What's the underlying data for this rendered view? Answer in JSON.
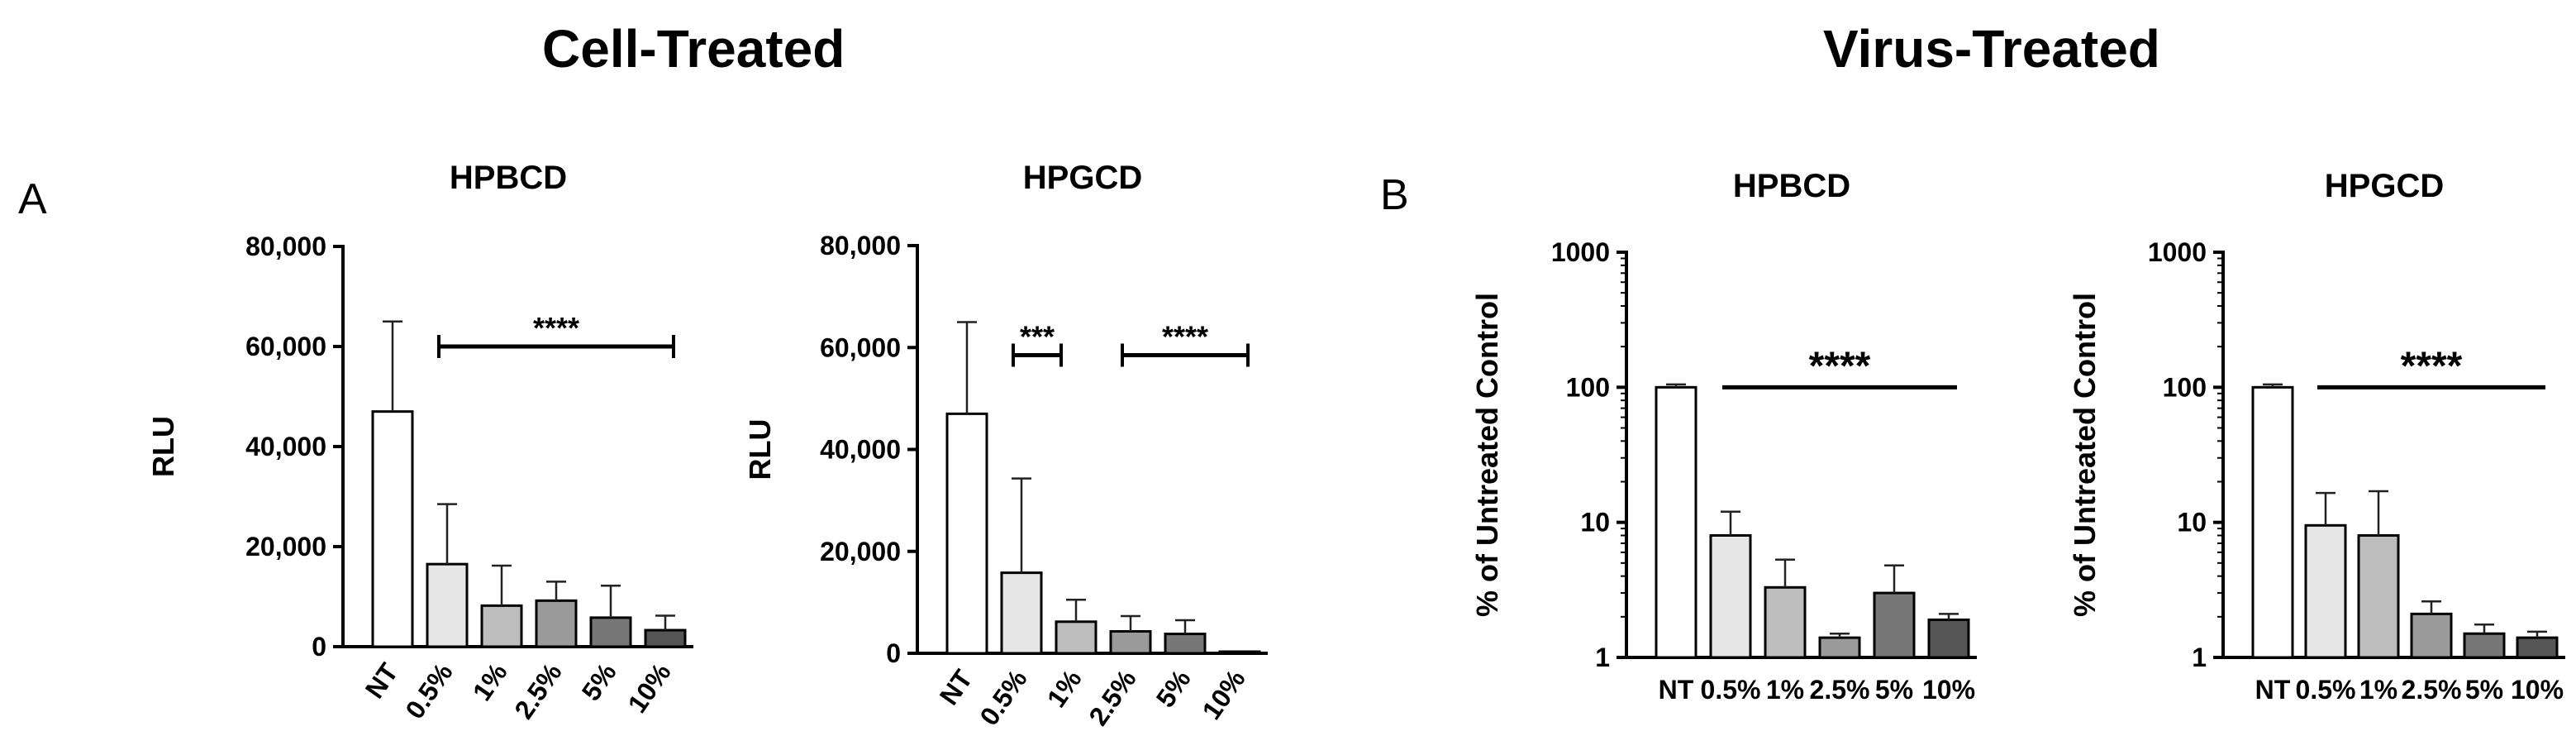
{
  "sections": {
    "cell_title": "Cell-Treated",
    "virus_title": "Virus-Treated",
    "panel_a": "A",
    "panel_b": "B"
  },
  "colors": {
    "NT": "#ffffff",
    "0.5%": "#e6e6e6",
    "1%": "#bdbdbd",
    "2.5%": "#9a9a9a",
    "5%": "#777777",
    "10%": "#555555",
    "axis": "#000000"
  },
  "chart_data": [
    {
      "type": "bar",
      "title": "HPBCD",
      "ylabel": "RLU",
      "scale": "linear",
      "ylim": [
        0,
        80000
      ],
      "yticks": [
        "0",
        "20,000",
        "40,000",
        "60,000",
        "80,000"
      ],
      "categories": [
        "NT",
        "0.5%",
        "1%",
        "2.5%",
        "5%",
        "10%"
      ],
      "values": [
        47000,
        16500,
        8200,
        9200,
        5800,
        3300
      ],
      "errors": [
        18000,
        12000,
        8000,
        3800,
        6400,
        2900
      ],
      "significance": [
        {
          "from": 1,
          "to": 5,
          "label": "****",
          "y": 60000
        }
      ]
    },
    {
      "type": "bar",
      "title": "HPGCD",
      "ylabel": "RLU",
      "scale": "linear",
      "ylim": [
        0,
        80000
      ],
      "yticks": [
        "0",
        "20,000",
        "40,000",
        "60,000",
        "80,000"
      ],
      "categories": [
        "NT",
        "0.5%",
        "1%",
        "2.5%",
        "5%",
        "10%"
      ],
      "values": [
        47000,
        15800,
        6200,
        4300,
        3800,
        300
      ],
      "errors": [
        18000,
        18500,
        4300,
        3000,
        2700,
        0
      ],
      "significance": [
        {
          "from": 1,
          "to": 1,
          "label": "***",
          "y": 58500,
          "width": 0.45
        },
        {
          "from": 3,
          "to": 5,
          "label": "****",
          "y": 58500
        }
      ]
    },
    {
      "type": "bar",
      "title": "HPBCD",
      "ylabel": "% of Untreated Control",
      "scale": "log",
      "ylim": [
        1,
        1000
      ],
      "yticks": [
        "1",
        "10",
        "100",
        "1000"
      ],
      "categories": [
        "NT",
        "0.5%",
        "1%",
        "2.5%",
        "5%",
        "10%"
      ],
      "values": [
        100,
        8,
        3.3,
        1.4,
        3.0,
        1.9
      ],
      "errors": [
        5,
        4,
        2,
        0.1,
        1.8,
        0.2
      ],
      "significance": [
        {
          "from": 1,
          "to": 5,
          "label": "****",
          "y": 100
        }
      ]
    },
    {
      "type": "bar",
      "title": "HPGCD",
      "ylabel": "% of Untreated Control",
      "scale": "log",
      "ylim": [
        1,
        1000
      ],
      "yticks": [
        "1",
        "10",
        "100",
        "1000"
      ],
      "categories": [
        "NT",
        "0.5%",
        "1%",
        "2.5%",
        "5%",
        "10%"
      ],
      "values": [
        100,
        9.5,
        8,
        2.1,
        1.5,
        1.4
      ],
      "errors": [
        5,
        7,
        9,
        0.5,
        0.25,
        0.15
      ],
      "significance": [
        {
          "from": 1,
          "to": 5,
          "label": "****",
          "y": 100
        }
      ]
    }
  ]
}
